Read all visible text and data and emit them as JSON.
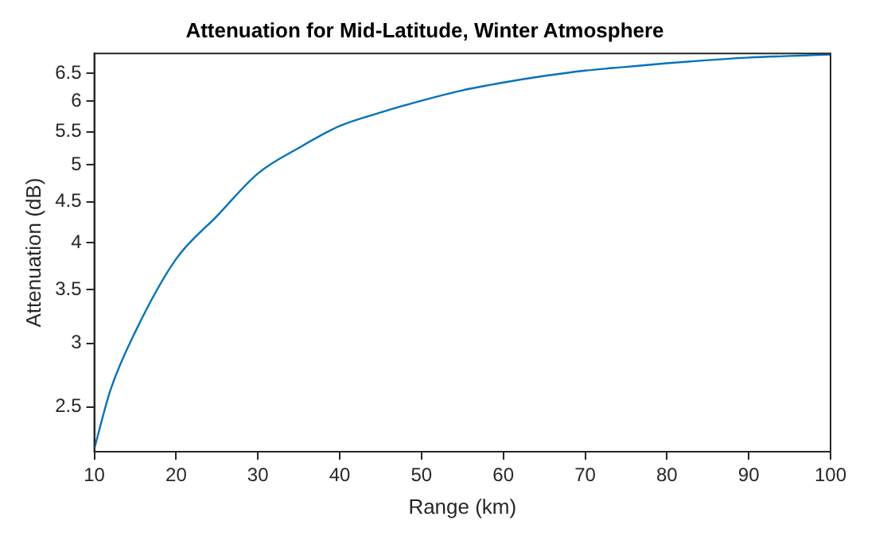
{
  "chart_data": {
    "type": "line",
    "title": "Attenuation for Mid-Latitude, Winter Atmosphere",
    "xlabel": "Range (km)",
    "ylabel": "Attenuation (dB)",
    "x": [
      10,
      12,
      15,
      20,
      25,
      30,
      35,
      40,
      45,
      50,
      55,
      60,
      65,
      70,
      75,
      80,
      85,
      90,
      95,
      100
    ],
    "series": [
      {
        "color": "#0072bd",
        "values": [
          2.22,
          2.63,
          3.1,
          3.82,
          4.32,
          4.88,
          5.25,
          5.59,
          5.81,
          6.01,
          6.19,
          6.33,
          6.45,
          6.55,
          6.62,
          6.69,
          6.75,
          6.8,
          6.83,
          6.86
        ]
      }
    ],
    "xlim": [
      10,
      100
    ],
    "xticks": [
      10,
      20,
      30,
      40,
      50,
      60,
      70,
      80,
      90,
      100
    ],
    "ylim": [
      2.22,
      6.88
    ],
    "yticks": [
      2.5,
      3,
      3.5,
      4,
      4.5,
      5,
      5.5,
      6,
      6.5
    ],
    "log": "y",
    "grid": false,
    "legend": false,
    "marker": "none",
    "line_style": "solid"
  }
}
